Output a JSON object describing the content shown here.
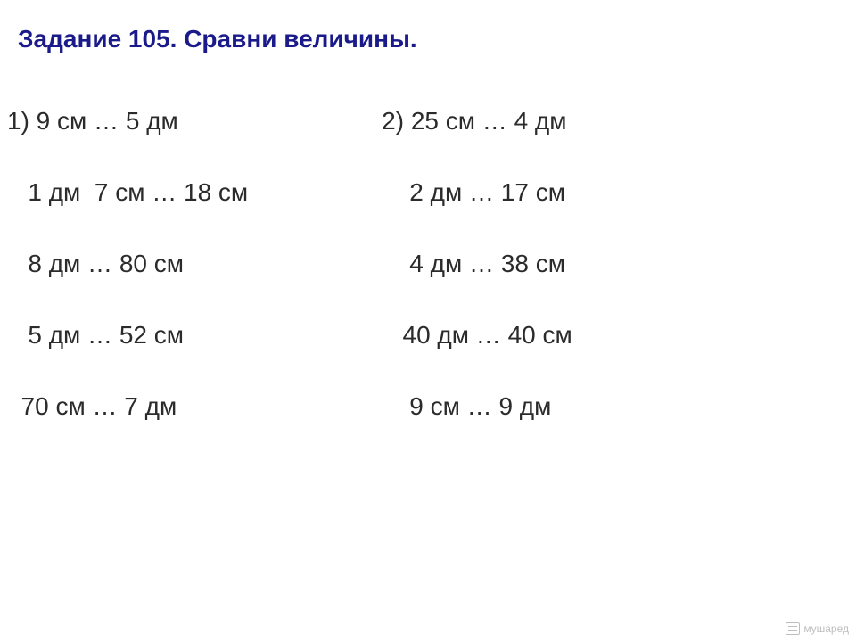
{
  "title": "Задание 105. Сравни величины.",
  "columns": [
    {
      "label": "1)",
      "rows": [
        "1) 9 см … 5 дм",
        "   1 дм  7 см … 18 см",
        "   8 дм … 80 см",
        "   5 дм … 52 см",
        "  70 см … 7 дм"
      ]
    },
    {
      "label": "2)",
      "rows": [
        "2) 25 см … 4 дм",
        "    2 дм … 17 см",
        "    4 дм … 38 см",
        "   40 дм … 40 см",
        "    9 см … 9 дм"
      ]
    }
  ],
  "watermark": "мyшаред",
  "colors": {
    "title": "#1a1a8a",
    "text": "#2b2b2b",
    "background": "#ffffff",
    "watermark": "#bfbfbf"
  },
  "typography": {
    "title_fontsize": 28,
    "title_weight": "bold",
    "row_fontsize": 28,
    "font_family": "Arial"
  },
  "layout": {
    "row_gap": 48,
    "col2_padding_left": 150
  }
}
